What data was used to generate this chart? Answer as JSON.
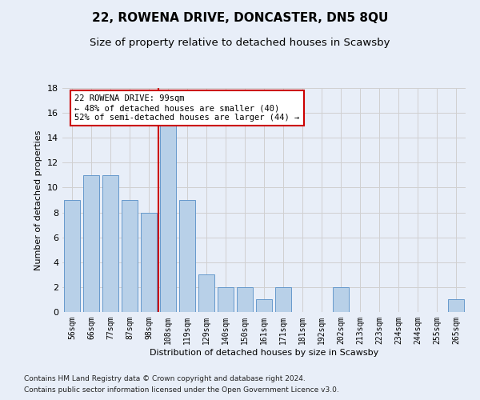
{
  "title": "22, ROWENA DRIVE, DONCASTER, DN5 8QU",
  "subtitle": "Size of property relative to detached houses in Scawsby",
  "xlabel": "Distribution of detached houses by size in Scawsby",
  "ylabel": "Number of detached properties",
  "bar_labels": [
    "56sqm",
    "66sqm",
    "77sqm",
    "87sqm",
    "98sqm",
    "108sqm",
    "119sqm",
    "129sqm",
    "140sqm",
    "150sqm",
    "161sqm",
    "171sqm",
    "181sqm",
    "192sqm",
    "202sqm",
    "213sqm",
    "223sqm",
    "234sqm",
    "244sqm",
    "255sqm",
    "265sqm"
  ],
  "bar_values": [
    9,
    11,
    11,
    9,
    8,
    15,
    9,
    3,
    2,
    2,
    1,
    2,
    0,
    0,
    2,
    0,
    0,
    0,
    0,
    0,
    1
  ],
  "bar_color": "#b8d0e8",
  "bar_edge_color": "#6699cc",
  "background_color": "#e8eef8",
  "grid_color": "#d0d0d0",
  "property_line_x": 4.5,
  "annotation_text": "22 ROWENA DRIVE: 99sqm\n← 48% of detached houses are smaller (40)\n52% of semi-detached houses are larger (44) →",
  "annotation_box_color": "#ffffff",
  "annotation_box_edge": "#cc0000",
  "vline_color": "#cc0000",
  "ylim": [
    0,
    18
  ],
  "yticks": [
    0,
    2,
    4,
    6,
    8,
    10,
    12,
    14,
    16,
    18
  ],
  "footer_line1": "Contains HM Land Registry data © Crown copyright and database right 2024.",
  "footer_line2": "Contains public sector information licensed under the Open Government Licence v3.0.",
  "title_fontsize": 11,
  "subtitle_fontsize": 9.5,
  "annotation_fontsize": 7.5,
  "footer_fontsize": 6.5,
  "ylabel_fontsize": 8,
  "xlabel_fontsize": 8,
  "ytick_fontsize": 8,
  "xtick_fontsize": 7
}
